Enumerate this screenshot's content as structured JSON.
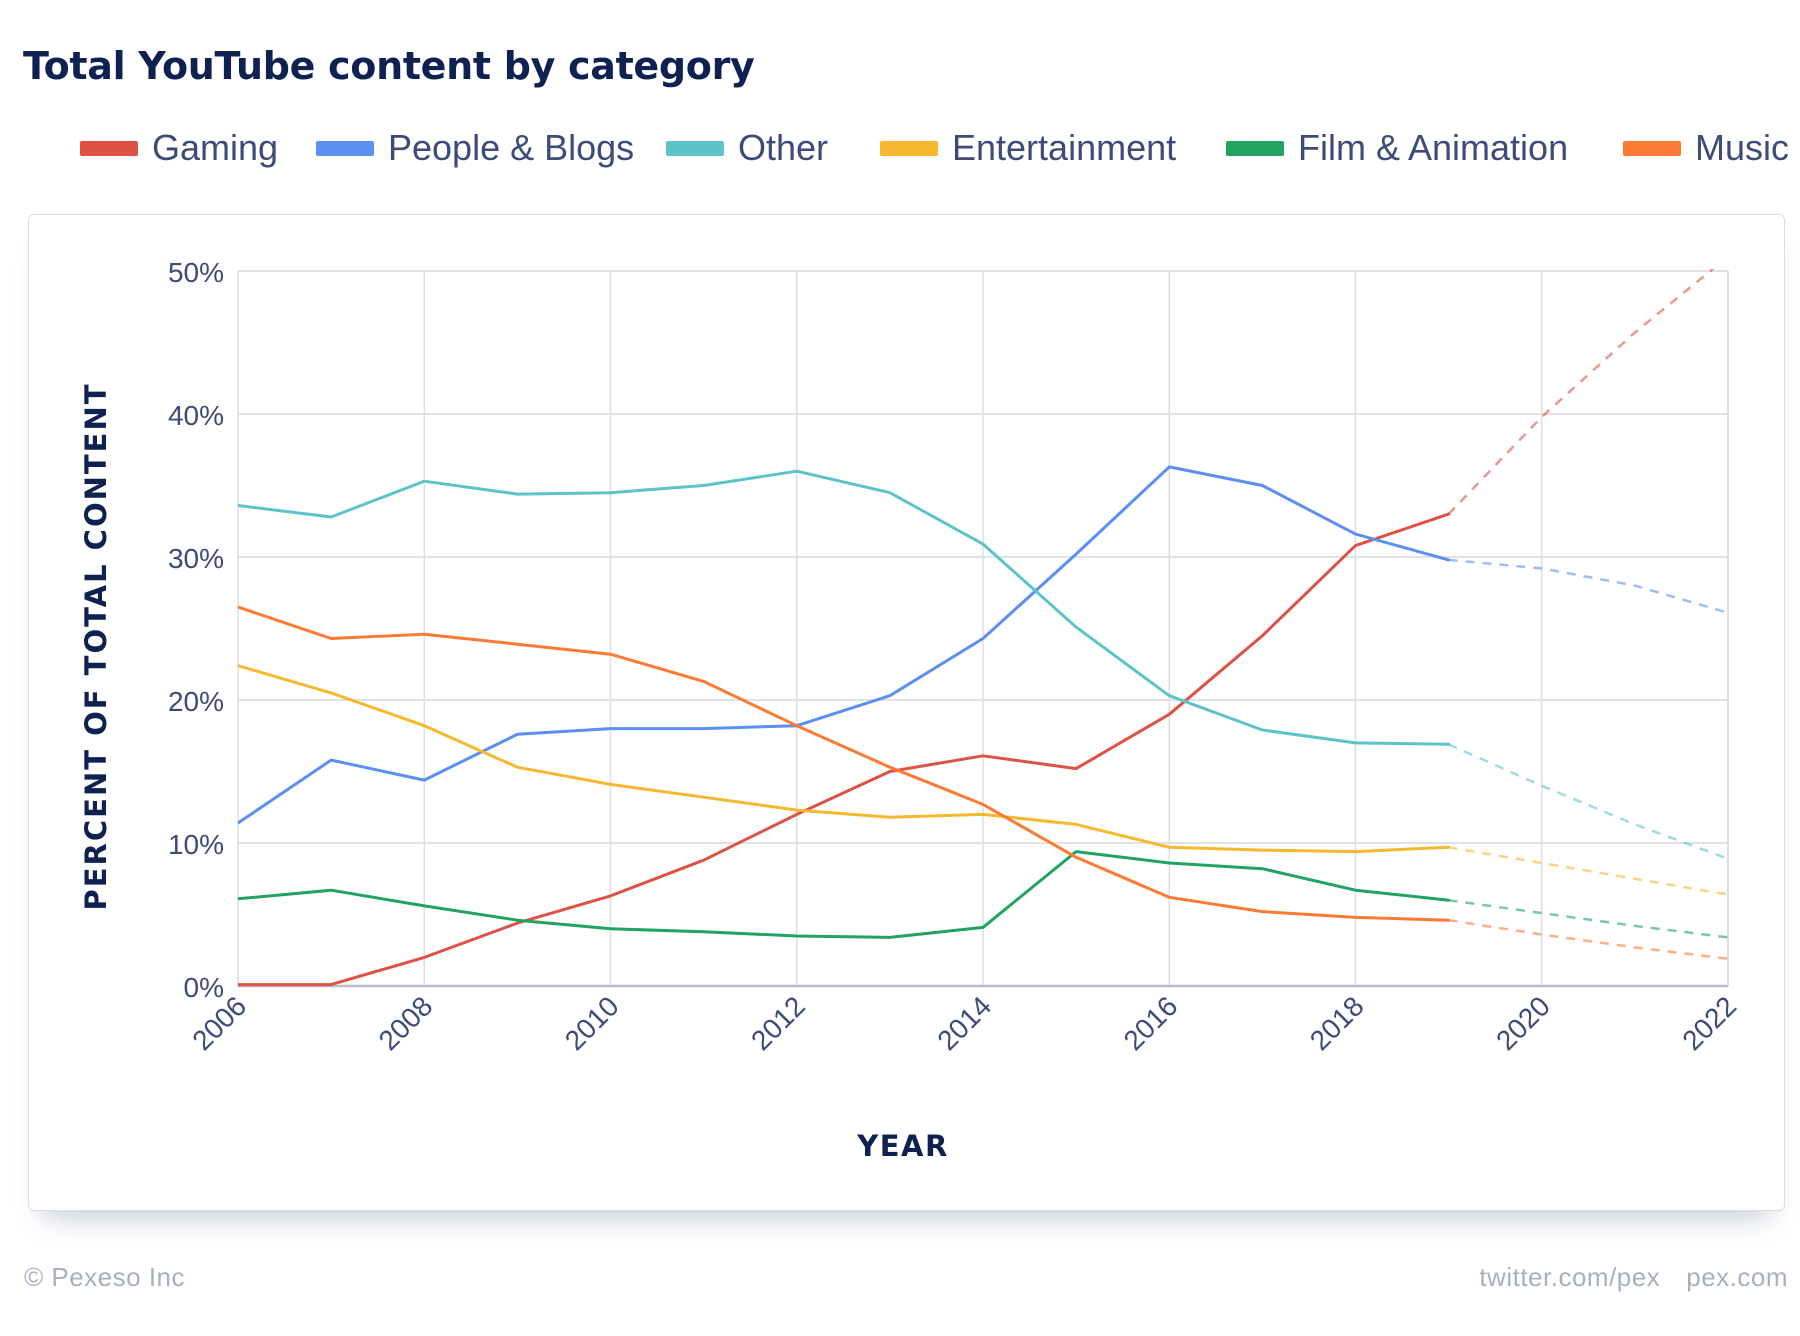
{
  "chart_data": {
    "type": "line",
    "title": "Total YouTube content by category",
    "xlabel": "YEAR",
    "ylabel": "PERCENT OF TOTAL CONTENT",
    "xlim": [
      2006,
      2022
    ],
    "ylim": [
      0,
      50
    ],
    "xticks": [
      "2006",
      "2008",
      "2010",
      "2012",
      "2014",
      "2016",
      "2018",
      "2020",
      "2022"
    ],
    "yticks": [
      "0%",
      "10%",
      "20%",
      "30%",
      "40%",
      "50%"
    ],
    "grid": true,
    "legend_position": "top",
    "series": [
      {
        "name": "Gaming",
        "color": "#de5246",
        "x": [
          2006,
          2007,
          2008,
          2009,
          2010,
          2011,
          2012,
          2013,
          2014,
          2015,
          2016,
          2017,
          2018,
          2019
        ],
        "values": [
          0.1,
          0.1,
          2.0,
          4.4,
          6.3,
          8.8,
          12.0,
          15.0,
          16.1,
          15.2,
          19.0,
          24.5,
          30.8,
          33.0
        ],
        "projection_x": [
          2019,
          2020,
          2021,
          2022
        ],
        "projection": [
          33.0,
          39.8,
          45.7,
          51.0
        ]
      },
      {
        "name": "People & Blogs",
        "color": "#5c8ff2",
        "x": [
          2006,
          2007,
          2008,
          2009,
          2010,
          2011,
          2012,
          2013,
          2014,
          2015,
          2016,
          2017,
          2018,
          2019
        ],
        "values": [
          11.4,
          15.8,
          14.4,
          17.6,
          18.0,
          18.0,
          18.2,
          20.3,
          24.3,
          30.2,
          36.3,
          35.0,
          31.6,
          29.8
        ],
        "projection_x": [
          2019,
          2020,
          2021,
          2022
        ],
        "projection": [
          29.8,
          29.2,
          28.0,
          26.1
        ]
      },
      {
        "name": "Other",
        "color": "#5cc3c9",
        "x": [
          2006,
          2007,
          2008,
          2009,
          2010,
          2011,
          2012,
          2013,
          2014,
          2015,
          2016,
          2017,
          2018,
          2019
        ],
        "values": [
          33.6,
          32.8,
          35.3,
          34.4,
          34.5,
          35.0,
          36.0,
          34.5,
          30.9,
          25.1,
          20.3,
          17.9,
          17.0,
          16.9
        ],
        "projection_x": [
          2019,
          2020,
          2021,
          2022
        ],
        "projection": [
          16.9,
          14.0,
          11.3,
          8.9
        ]
      },
      {
        "name": "Entertainment",
        "color": "#f5b82e",
        "x": [
          2006,
          2007,
          2008,
          2009,
          2010,
          2011,
          2012,
          2013,
          2014,
          2015,
          2016,
          2017,
          2018,
          2019
        ],
        "values": [
          22.4,
          20.5,
          18.2,
          15.3,
          14.1,
          13.2,
          12.3,
          11.8,
          12.0,
          11.3,
          9.7,
          9.5,
          9.4,
          9.7
        ],
        "projection_x": [
          2019,
          2020,
          2021,
          2022
        ],
        "projection": [
          9.7,
          8.6,
          7.5,
          6.4
        ]
      },
      {
        "name": "Film & Animation",
        "color": "#22a362",
        "x": [
          2006,
          2007,
          2008,
          2009,
          2010,
          2011,
          2012,
          2013,
          2014,
          2015,
          2016,
          2017,
          2018,
          2019
        ],
        "values": [
          6.1,
          6.7,
          5.6,
          4.6,
          4.0,
          3.8,
          3.5,
          3.4,
          4.1,
          9.4,
          8.6,
          8.2,
          6.7,
          6.0
        ],
        "projection_x": [
          2019,
          2020,
          2021,
          2022
        ],
        "projection": [
          6.0,
          5.1,
          4.2,
          3.4
        ]
      },
      {
        "name": "Music",
        "color": "#fd7a35",
        "x": [
          2006,
          2007,
          2008,
          2009,
          2010,
          2011,
          2012,
          2013,
          2014,
          2015,
          2016,
          2017,
          2018,
          2019
        ],
        "values": [
          26.5,
          24.3,
          24.6,
          23.9,
          23.2,
          21.3,
          18.2,
          15.3,
          12.7,
          9.0,
          6.2,
          5.2,
          4.8,
          4.6
        ],
        "projection_x": [
          2019,
          2020,
          2021,
          2022
        ],
        "projection": [
          4.6,
          3.6,
          2.7,
          1.9
        ]
      }
    ]
  },
  "footer": {
    "copyright": "© Pexeso Inc",
    "twitter": "twitter.com/pex",
    "site": "pex.com"
  }
}
